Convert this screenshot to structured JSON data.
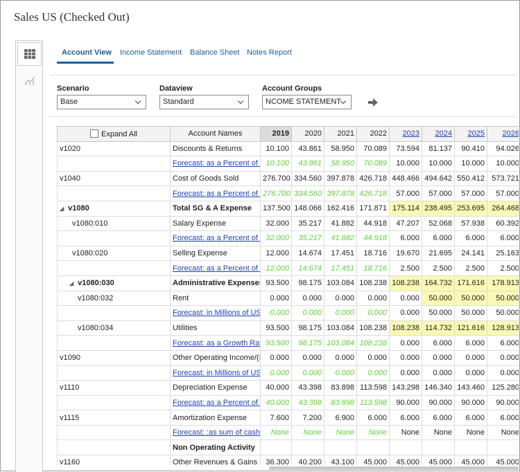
{
  "header": {
    "title": "Sales US (Checked Out)"
  },
  "tabs": [
    "Account View",
    "Income Statement",
    "Balance Sheet",
    "Notes Report"
  ],
  "filters": [
    {
      "label": "Scenario",
      "value": "Base"
    },
    {
      "label": "Dataview",
      "value": "Standard"
    },
    {
      "label": "Account Groups",
      "value": "NCOME STATEMENT"
    }
  ],
  "table": {
    "header": {
      "expand": "Expand All",
      "account_names": "Account Names",
      "years": [
        "2019",
        "2020",
        "2021",
        "2022",
        "2023",
        "2024",
        "2025",
        "2026"
      ]
    },
    "rows": [
      {
        "code": "v1020",
        "name": "Discounts & Returns",
        "cells": [
          "10.100",
          "43.861",
          "58.950",
          "70.089",
          "73.594",
          "81.137",
          "90.410",
          "94.026"
        ]
      },
      {
        "name": "Forecast: as a Percent of R",
        "cells": [
          "10.100",
          "43.861",
          "58.950",
          "70.089",
          "10.000",
          "10.000",
          "10.000",
          "10.000"
        ]
      },
      {
        "code": "v1040",
        "name": "Cost of Goods Sold",
        "cells": [
          "276.700",
          "334.560",
          "397.878",
          "426.718",
          "448.466",
          "494.642",
          "550.412",
          "573.721"
        ]
      },
      {
        "name": "Forecast: as a Percent of S",
        "cells": [
          "276.700",
          "334.560",
          "397.878",
          "426.718",
          "57.000",
          "57.000",
          "57.000",
          "57.000"
        ]
      },
      {
        "code": "v1080",
        "name": "Total SG & A Expense",
        "cells": [
          "137.500",
          "148.066",
          "162.416",
          "171.871",
          "175.114",
          "238.495",
          "253.695",
          "264.468"
        ]
      },
      {
        "code": "v1080:010",
        "name": "Salary Expense",
        "cells": [
          "32.000",
          "35.217",
          "41.882",
          "44.918",
          "47.207",
          "52.068",
          "57.938",
          "60.392"
        ]
      },
      {
        "name": "Forecast: as a Percent of S",
        "cells": [
          "32.000",
          "35.217",
          "41.882",
          "44.918",
          "6.000",
          "6.000",
          "6.000",
          "6.000"
        ]
      },
      {
        "code": "v1080:020",
        "name": "Selling Expense",
        "cells": [
          "12.000",
          "14.674",
          "17.451",
          "18.716",
          "19.670",
          "21.695",
          "24.141",
          "25.163"
        ]
      },
      {
        "name": "Forecast: as a Percent of S",
        "cells": [
          "12.000",
          "14.674",
          "17.451",
          "18.716",
          "2.500",
          "2.500",
          "2.500",
          "2.500"
        ]
      },
      {
        "code": "v1080:030",
        "name": "Administrative Expenses",
        "cells": [
          "93.500",
          "98.175",
          "103.084",
          "108.238",
          "108.238",
          "164.732",
          "171.616",
          "178.913"
        ]
      },
      {
        "code": "v1080:032",
        "name": "Rent",
        "cells": [
          "0.000",
          "0.000",
          "0.000",
          "0.000",
          "0.000",
          "50.000",
          "50.000",
          "50.000"
        ]
      },
      {
        "name": "Forecast: in Millions of US",
        "cells": [
          "0.000",
          "0.000",
          "0.000",
          "0.000",
          "0.000",
          "50.000",
          "50.000",
          "50.000"
        ]
      },
      {
        "code": "v1080:034",
        "name": "Utilities",
        "cells": [
          "93.500",
          "98.175",
          "103.084",
          "108.238",
          "108.238",
          "114.732",
          "121.616",
          "128.913"
        ]
      },
      {
        "name": "Forecast: as a Growth Rate",
        "cells": [
          "93.500",
          "98.175",
          "103.084",
          "108.238",
          "0.000",
          "6.000",
          "6.000",
          "6.000"
        ]
      },
      {
        "code": "v1090",
        "name": "Other Operating Income/(E",
        "cells": [
          "0.000",
          "0.000",
          "0.000",
          "0.000",
          "0.000",
          "0.000",
          "0.000",
          "0.000"
        ]
      },
      {
        "name": "Forecast: in Millions of US",
        "cells": [
          "0.000",
          "0.000",
          "0.000",
          "0.000",
          "0.000",
          "0.000",
          "0.000",
          "0.000"
        ]
      },
      {
        "code": "v1110",
        "name": "Depreciation Expense",
        "cells": [
          "40.000",
          "43.398",
          "83.898",
          "113.598",
          "143.298",
          "146.340",
          "143.460",
          "125.280"
        ]
      },
      {
        "name": "Forecast: as a Percent of D",
        "cells": [
          "40.000",
          "43.398",
          "83.898",
          "113.598",
          "90.000",
          "90.000",
          "90.000",
          "90.000"
        ]
      },
      {
        "code": "v1115",
        "name": "Amortization Expense",
        "cells": [
          "7.600",
          "7.200",
          "6.900",
          "6.000",
          "6.000",
          "6.000",
          "6.000",
          "6.000"
        ]
      },
      {
        "name": "Forecast: :as sum of cash",
        "cells": [
          "None",
          "None",
          "None",
          "None",
          "None",
          "None",
          "None",
          "None"
        ]
      },
      {
        "name": "Non Operating Activity"
      },
      {
        "code": "v1160",
        "name": "Other Revenues & Gains",
        "cells": [
          "36.300",
          "40.200",
          "43.100",
          "45.000",
          "45.000",
          "45.000",
          "45.000",
          "45.000"
        ]
      }
    ]
  }
}
